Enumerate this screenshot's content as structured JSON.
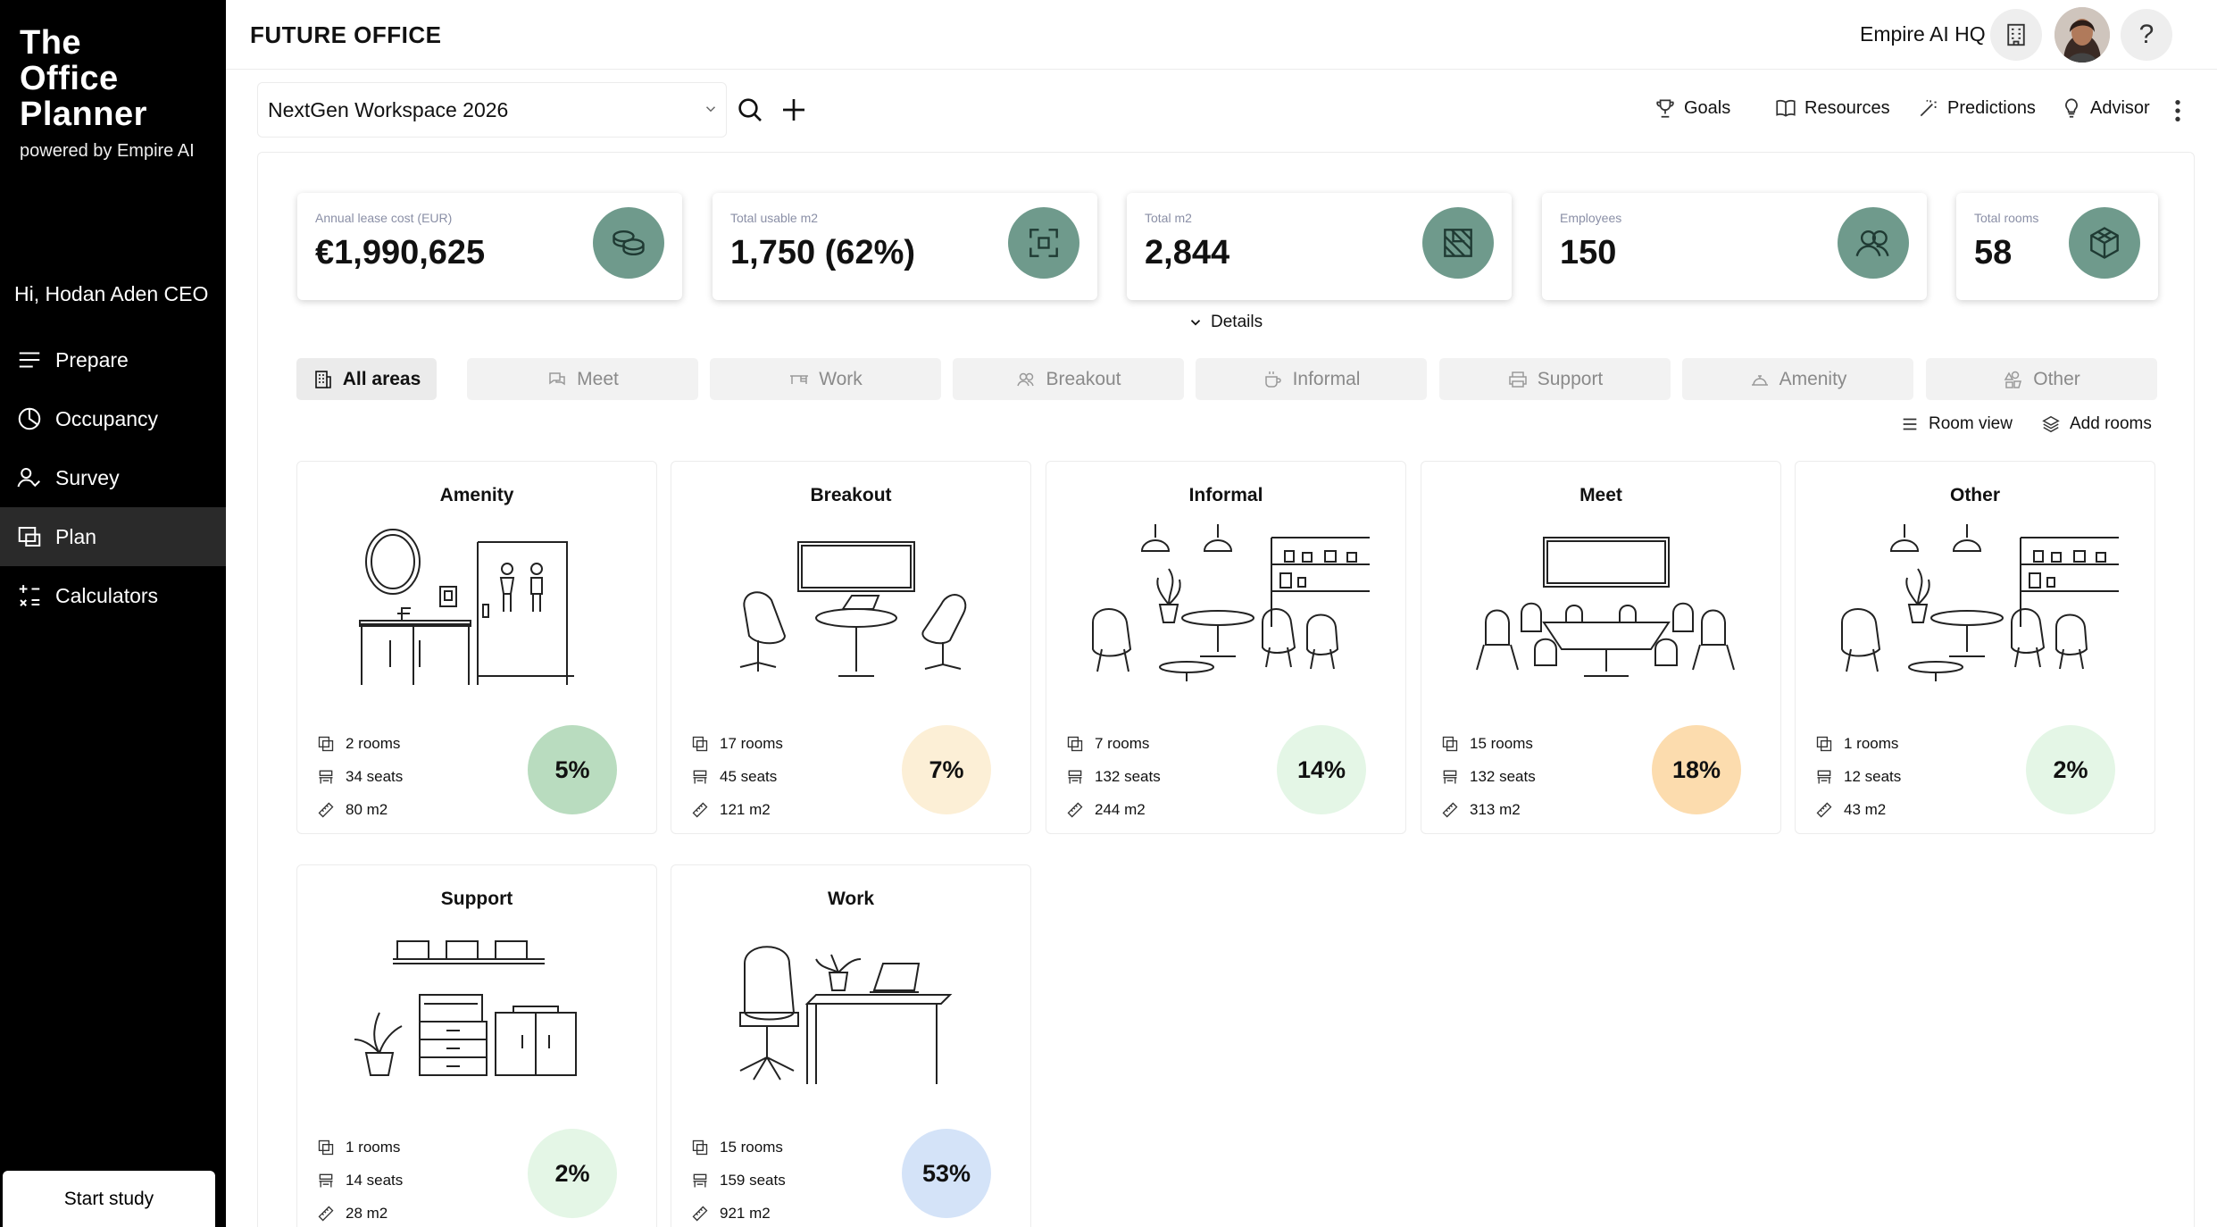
{
  "sidebar": {
    "brand_title": "The\nOffice\nPlanner",
    "brand_subtitle": "powered by Empire AI",
    "greeting": "Hi, Hodan Aden CEO",
    "nav": [
      {
        "label": "Prepare",
        "icon": "list-icon"
      },
      {
        "label": "Occupancy",
        "icon": "pie-icon"
      },
      {
        "label": "Survey",
        "icon": "person-check-icon"
      },
      {
        "label": "Plan",
        "icon": "floorplan-icon",
        "active": true
      },
      {
        "label": "Calculators",
        "icon": "calculator-icon"
      }
    ],
    "start_study": "Start study"
  },
  "header": {
    "title": "FUTURE OFFICE",
    "org_name": "Empire AI HQ",
    "help": "?"
  },
  "toolbar": {
    "workspace": "NextGen Workspace 2026",
    "links": [
      "Goals",
      "Resources",
      "Predictions",
      "Advisor"
    ]
  },
  "kpis": [
    {
      "label": "Annual lease cost (EUR)",
      "value": "€1,990,625",
      "icon": "coins-icon"
    },
    {
      "label": "Total usable m2",
      "value": "1,750 (62%)",
      "icon": "area-icon"
    },
    {
      "label": "Total m2",
      "value": "2,844",
      "icon": "floorplan-icon"
    },
    {
      "label": "Employees",
      "value": "150",
      "icon": "people-icon"
    },
    {
      "label": "Total rooms",
      "value": "58",
      "icon": "cube-icon"
    }
  ],
  "details_label": "Details",
  "tabs": [
    {
      "label": "All areas",
      "icon": "building-icon",
      "active": true
    },
    {
      "label": "Meet",
      "icon": "chat-icon"
    },
    {
      "label": "Work",
      "icon": "desk-icon"
    },
    {
      "label": "Breakout",
      "icon": "people-icon"
    },
    {
      "label": "Informal",
      "icon": "coffee-icon"
    },
    {
      "label": "Support",
      "icon": "printer-icon"
    },
    {
      "label": "Amenity",
      "icon": "bell-icon"
    },
    {
      "label": "Other",
      "icon": "shapes-icon"
    }
  ],
  "view_links": {
    "room_view": "Room view",
    "add_rooms": "Add rooms"
  },
  "cards": [
    {
      "title": "Amenity",
      "rooms": "2 rooms",
      "seats": "34 seats",
      "area": "80 m2",
      "pct": "5%",
      "pct_color": "#b9dcbf"
    },
    {
      "title": "Breakout",
      "rooms": "17 rooms",
      "seats": "45 seats",
      "area": "121 m2",
      "pct": "7%",
      "pct_color": "#fcefd6"
    },
    {
      "title": "Informal",
      "rooms": "7 rooms",
      "seats": "132 seats",
      "area": "244 m2",
      "pct": "14%",
      "pct_color": "#e4f6e6"
    },
    {
      "title": "Meet",
      "rooms": "15 rooms",
      "seats": "132 seats",
      "area": "313 m2",
      "pct": "18%",
      "pct_color": "#fcdcae"
    },
    {
      "title": "Other",
      "rooms": "1 rooms",
      "seats": "12 seats",
      "area": "43 m2",
      "pct": "2%",
      "pct_color": "#e4f6e6"
    },
    {
      "title": "Support",
      "rooms": "1 rooms",
      "seats": "14 seats",
      "area": "28 m2",
      "pct": "2%",
      "pct_color": "#e4f6e6"
    },
    {
      "title": "Work",
      "rooms": "15 rooms",
      "seats": "159 seats",
      "area": "921 m2",
      "pct": "53%",
      "pct_color": "#d4e3f8"
    }
  ]
}
